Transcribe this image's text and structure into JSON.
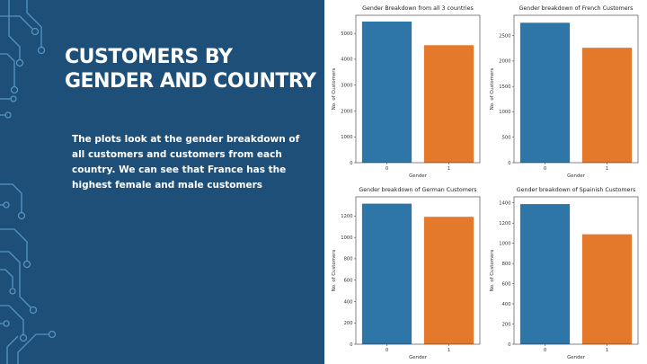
{
  "slide": {
    "title": "CUSTOMERS BY GENDER AND COUNTRY",
    "body": "The plots look at the gender breakdown of all customers and customers from each country. We can see that France has the highest female and male customers"
  },
  "colors": {
    "background": "#1e4f79",
    "circuit": "#5fa0cf",
    "bar_gender_0": "#2e75a8",
    "bar_gender_1": "#e4782b"
  },
  "chart_data": [
    {
      "type": "bar",
      "title": "Gender Breakdown from all 3 countries",
      "xlabel": "Gender",
      "ylabel": "No. of Customers",
      "categories": [
        "0",
        "1"
      ],
      "values": [
        5457,
        4543
      ],
      "ylim": [
        0,
        5700
      ],
      "yticks": [
        0,
        1000,
        2000,
        3000,
        4000,
        5000
      ]
    },
    {
      "type": "bar",
      "title": "Gender breakdown of French Customers",
      "xlabel": "Gender",
      "ylabel": "No. of Customers",
      "categories": [
        "0",
        "1"
      ],
      "values": [
        2753,
        2261
      ],
      "ylim": [
        0,
        2900
      ],
      "yticks": [
        0,
        500,
        1000,
        1500,
        2000,
        2500
      ]
    },
    {
      "type": "bar",
      "title": "Gender breakdown of German Customers",
      "xlabel": "Gender",
      "ylabel": "No. of Customers",
      "categories": [
        "0",
        "1"
      ],
      "values": [
        1316,
        1193
      ],
      "ylim": [
        0,
        1380
      ],
      "yticks": [
        0,
        200,
        400,
        600,
        800,
        1000,
        1200
      ]
    },
    {
      "type": "bar",
      "title": "Gender breakdown of Spainish Customers",
      "xlabel": "Gender",
      "ylabel": "No. of Customers",
      "categories": [
        "0",
        "1"
      ],
      "values": [
        1388,
        1089
      ],
      "ylim": [
        0,
        1460
      ],
      "yticks": [
        0,
        200,
        400,
        600,
        800,
        1000,
        1200,
        1400
      ]
    }
  ]
}
